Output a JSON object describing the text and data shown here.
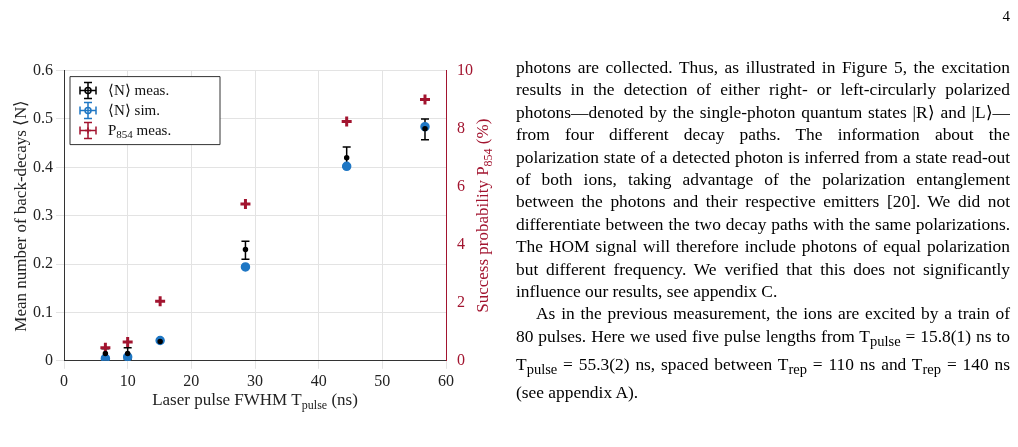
{
  "chart_data": {
    "type": "scatter",
    "xlabel": "Laser pulse FWHM T$_{pulse}$ (ns)",
    "ylabel": "Mean number of back-decays ⟨N⟩",
    "y2label": "Success probability P$_{854}$ (%)",
    "x": [
      6.5,
      10,
      15.1,
      28.5,
      44.4,
      56.7
    ],
    "series": [
      {
        "name": "⟨N⟩ meas.",
        "color": "#000000",
        "marker": "circle",
        "values": [
          0.015,
          0.015,
          0.04,
          0.23,
          0.42,
          0.48
        ],
        "errors": [
          0.01,
          0.012,
          null,
          [
            0.21,
            0.247
          ],
          [
            0.4,
            0.442
          ],
          [
            0.457,
            0.5
          ]
        ]
      },
      {
        "name": "⟨N⟩ sim.",
        "color": "#1f77c4",
        "marker": "circle",
        "values": [
          0.005,
          0.008,
          0.042,
          0.194,
          0.402,
          0.484
        ]
      },
      {
        "name": "P$_{854}$ meas.",
        "color": "#a2142f",
        "marker": "cross",
        "axis": "y2",
        "values": [
          0.45,
          0.65,
          2.05,
          5.4,
          8.25,
          9.0
        ]
      }
    ],
    "xlim": [
      0,
      60
    ],
    "xticks": [
      0,
      10,
      20,
      30,
      40,
      50,
      60
    ],
    "ylim": [
      0,
      0.6
    ],
    "yticks": [
      0,
      0.1,
      0.2,
      0.3,
      0.4,
      0.5,
      0.6
    ],
    "y2lim": [
      0,
      10
    ],
    "y2ticks": [
      0,
      2,
      4,
      6,
      8,
      10
    ],
    "grid": true,
    "legend": "top left",
    "annotations": [
      "4",
      "photons are collected. Thus, as illustrated in Figure 5, the excitation results in the detection of either right- or left-circularly polarized photons—denoted by the single-photon quantum states |R⟩ and |L⟩—from four different decay paths. The information about the polarization state of a detected photon is inferred from a state read-out of both ions, taking advantage of the polarization entanglement between the photons and their respective emitters [20]. We did not differentiate between the two decay paths with the same polarizations. The HOM signal will therefore include photons of equal polarization but different frequency. We verified that this does not significantly influence our results, see appendix C.",
      "As in the previous measurement, the ions are excited by a train of 80 pulses. Here we used five pulse lengths from T$_{pulse}$ = 15.8(1) ns to T$_{pulse}$ = 55.3(2) ns, spaced between T$_{rep}$ = 110 ns and T$_{rep}$ = 140 ns (see appendix A)."
    ]
  }
}
